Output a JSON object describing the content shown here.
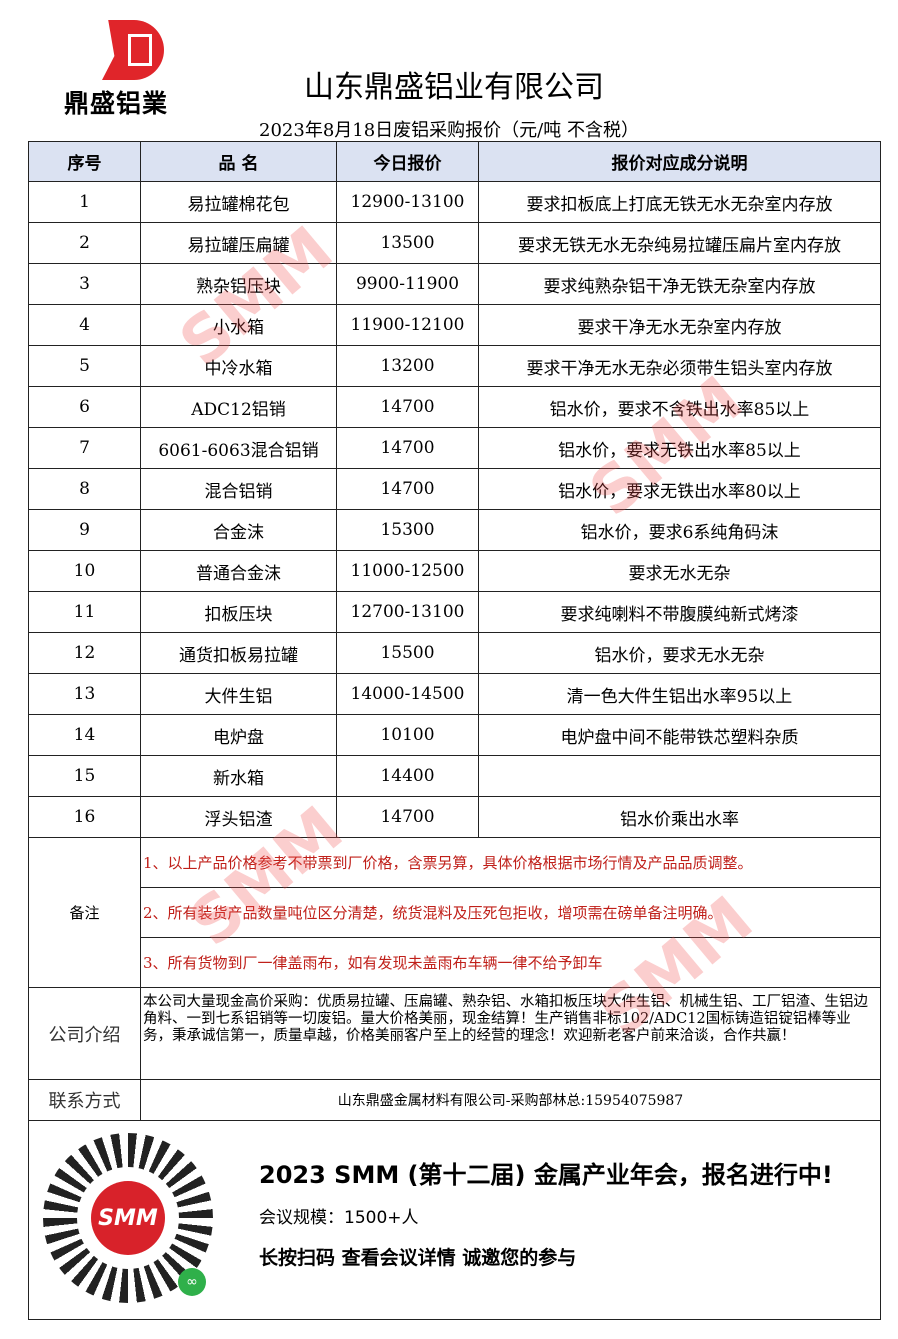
{
  "logo": {
    "text": "鼎盛铝業",
    "color": "#e0252a"
  },
  "header": {
    "title": "山东鼎盛铝业有限公司",
    "subtitle": "2023年8月18日废铝采购报价（元/吨 不含税）"
  },
  "table": {
    "columns": [
      "序号",
      "品 名",
      "今日报价",
      "报价对应成分说明"
    ],
    "rows": [
      {
        "no": "1",
        "name": "易拉罐棉花包",
        "price": "12900-13100",
        "note": "要求扣板底上打底无铁无水无杂室内存放"
      },
      {
        "no": "2",
        "name": "易拉罐压扁罐",
        "price": "13500",
        "note": "要求无铁无水无杂纯易拉罐压扁片室内存放"
      },
      {
        "no": "3",
        "name": "熟杂铝压块",
        "price": "9900-11900",
        "note": "要求纯熟杂铝干净无铁无杂室内存放"
      },
      {
        "no": "4",
        "name": "小水箱",
        "price": "11900-12100",
        "note": "要求干净无水无杂室内存放"
      },
      {
        "no": "5",
        "name": "中冷水箱",
        "price": "13200",
        "note": "要求干净无水无杂必须带生铝头室内存放"
      },
      {
        "no": "6",
        "name": "ADC12铝销",
        "price": "14700",
        "note": "铝水价，要求不含铁出水率85以上"
      },
      {
        "no": "7",
        "name": "6061-6063混合铝销",
        "price": "14700",
        "note": "铝水价，要求无铁出水率85以上"
      },
      {
        "no": "8",
        "name": "混合铝销",
        "price": "14700",
        "note": "铝水价，要求无铁出水率80以上"
      },
      {
        "no": "9",
        "name": "合金沫",
        "price": "15300",
        "note": "铝水价，要求6系纯角码沫"
      },
      {
        "no": "10",
        "name": "普通合金沫",
        "price": "11000-12500",
        "note": "要求无水无杂"
      },
      {
        "no": "11",
        "name": "扣板压块",
        "price": "12700-13100",
        "note": "要求纯喇料不带腹膜纯新式烤漆"
      },
      {
        "no": "12",
        "name": "通货扣板易拉罐",
        "price": "15500",
        "note": "铝水价，要求无水无杂"
      },
      {
        "no": "13",
        "name": "大件生铝",
        "price": "14000-14500",
        "note": "清一色大件生铝出水率95以上"
      },
      {
        "no": "14",
        "name": "电炉盘",
        "price": "10100",
        "note": "电炉盘中间不能带铁芯塑料杂质"
      },
      {
        "no": "15",
        "name": "新水箱",
        "price": "14400",
        "note": ""
      },
      {
        "no": "16",
        "name": "浮头铝渣",
        "price": "14700",
        "note": "铝水价乘出水率"
      }
    ]
  },
  "remarks": {
    "label": "备注",
    "items": [
      "1、以上产品价格参考不带票到厂价格，含票另算，具体价格根据市场行情及产品品质调整。",
      "2、所有装货产品数量吨位区分清楚，统货混料及压死包拒收，增项需在磅单备注明确。",
      "3、所有货物到厂一律盖雨布，如有发现未盖雨布车辆一律不给予卸车"
    ],
    "color": "#c0201a"
  },
  "intro": {
    "label": "公司介绍",
    "text": "本公司大量现金高价采购：优质易拉罐、压扁罐、熟杂铝、水箱扣板压块大件生铝、机械生铝、工厂铝渣、生铝边角料、一到七系铝销等一切废铝。量大价格美丽，现金结算！生产销售非标102/ADC12国标铸造铝锭铝棒等业务，秉承诚信第一，质量卓越，价格美丽客户至上的经营的理念！欢迎新老客户前来洽谈，合作共赢！"
  },
  "contact": {
    "label": "联系方式",
    "text": "山东鼎盛金属材料有限公司-采购部林总:15954075987"
  },
  "banner": {
    "qr_logo": "SMM",
    "headline": "2023 SMM (第十二届) 金属产业年会，报名进行中!",
    "scale": "会议规模：1500+人",
    "cta": "长按扫码  查看会议详情  诚邀您的参与"
  },
  "watermark": "SMM"
}
